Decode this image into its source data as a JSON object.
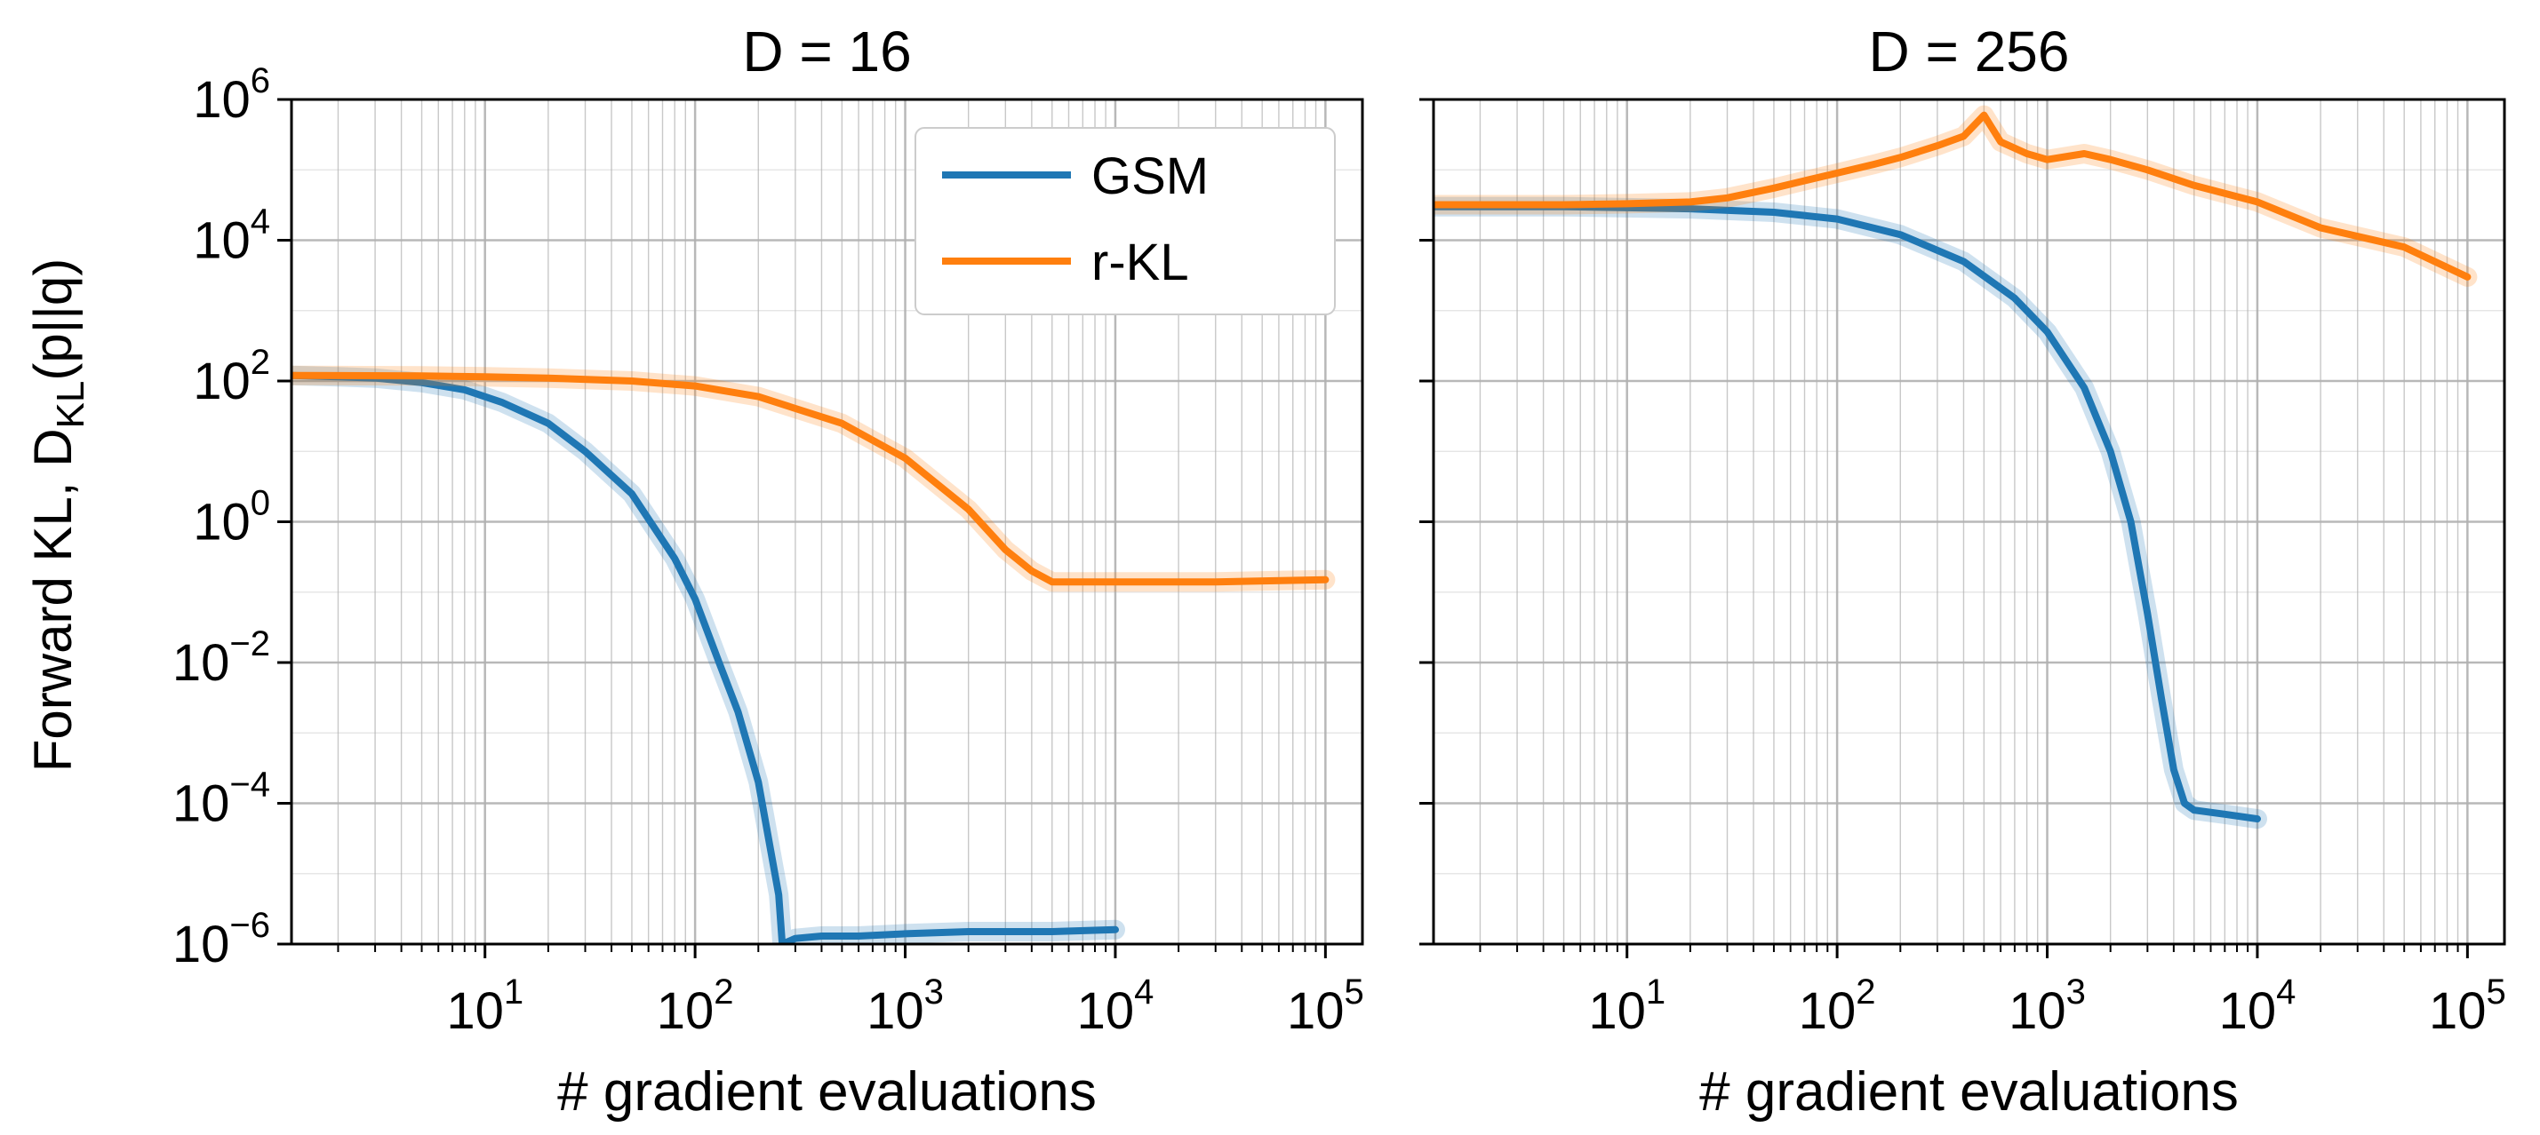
{
  "ylabel_main": "Forward KL, D",
  "ylabel_sub": "KL",
  "ylabel_tail": "(p||q)",
  "y_tick_base": "10",
  "x_tick_base": "10",
  "colors": {
    "gsm": "#1f77b4",
    "rkl": "#ff7f0e",
    "grid": "#b0b0b0"
  },
  "legend": {
    "placement": "upper-right of first panel",
    "items": [
      "GSM",
      "r-KL"
    ]
  },
  "chart_data": [
    {
      "type": "line",
      "title": "D = 16",
      "xlabel": "# gradient evaluations",
      "ylabel": "Forward KL, DKL(p||q)",
      "xscale": "log",
      "yscale": "log",
      "xlim": [
        1.2,
        150000
      ],
      "ylim": [
        1e-06,
        1000000.0
      ],
      "x_ticks": [
        1,
        2,
        3,
        4,
        5
      ],
      "y_ticks": [
        6,
        4,
        2,
        0,
        -2,
        -4,
        -6
      ],
      "grid": true,
      "legend_position": "top-right",
      "series": [
        {
          "name": "GSM",
          "color": "#1f77b4",
          "x": [
            1.2,
            2,
            3,
            5,
            8,
            12,
            20,
            30,
            50,
            80,
            100,
            130,
            160,
            200,
            230,
            250,
            260,
            300,
            400,
            600,
            1000,
            2000,
            5000,
            10000
          ],
          "y": [
            120,
            115,
            110,
            95,
            75,
            50,
            25,
            10,
            2.5,
            0.3,
            0.08,
            0.01,
            0.002,
            0.0002,
            2e-05,
            5e-06,
            1e-06,
            1.2e-06,
            1.3e-06,
            1.3e-06,
            1.4e-06,
            1.5e-06,
            1.5e-06,
            1.6e-06
          ]
        },
        {
          "name": "r-KL",
          "color": "#ff7f0e",
          "x": [
            1.2,
            5,
            10,
            20,
            50,
            100,
            200,
            500,
            1000,
            2000,
            3000,
            4000,
            5000,
            10000,
            30000,
            100000
          ],
          "y": [
            120,
            118,
            115,
            110,
            100,
            85,
            60,
            25,
            8,
            1.5,
            0.4,
            0.2,
            0.14,
            0.14,
            0.14,
            0.15
          ]
        }
      ]
    },
    {
      "type": "line",
      "title": "D = 256",
      "xlabel": "# gradient evaluations",
      "xscale": "log",
      "yscale": "log",
      "xlim": [
        1.2,
        150000
      ],
      "ylim": [
        1e-06,
        1000000.0
      ],
      "x_ticks": [
        1,
        2,
        3,
        4,
        5
      ],
      "y_ticks": [],
      "grid": true,
      "series": [
        {
          "name": "GSM",
          "color": "#1f77b4",
          "x": [
            1.2,
            5,
            10,
            20,
            50,
            100,
            200,
            400,
            700,
            1000,
            1500,
            2000,
            2500,
            3000,
            3500,
            4000,
            4500,
            5000,
            7000,
            10000
          ],
          "y": [
            30000,
            30000,
            29000,
            28000,
            25000,
            20000,
            12000,
            5000,
            1500,
            500,
            80,
            10,
            1,
            0.05,
            0.003,
            0.0003,
            0.0001,
            8e-05,
            7e-05,
            6e-05
          ]
        },
        {
          "name": "r-KL",
          "color": "#ff7f0e",
          "x": [
            1.2,
            5,
            10,
            20,
            30,
            50,
            70,
            100,
            150,
            200,
            300,
            400,
            500,
            600,
            800,
            1000,
            1500,
            2000,
            3000,
            5000,
            10000,
            20000,
            50000,
            100000
          ],
          "y": [
            32000,
            32000,
            33000,
            35000,
            40000,
            55000,
            70000,
            90000,
            120000,
            150000,
            220000,
            300000,
            600000,
            250000,
            170000,
            140000,
            170000,
            140000,
            100000,
            60000,
            35000,
            15000,
            8000,
            3000
          ]
        }
      ]
    }
  ]
}
